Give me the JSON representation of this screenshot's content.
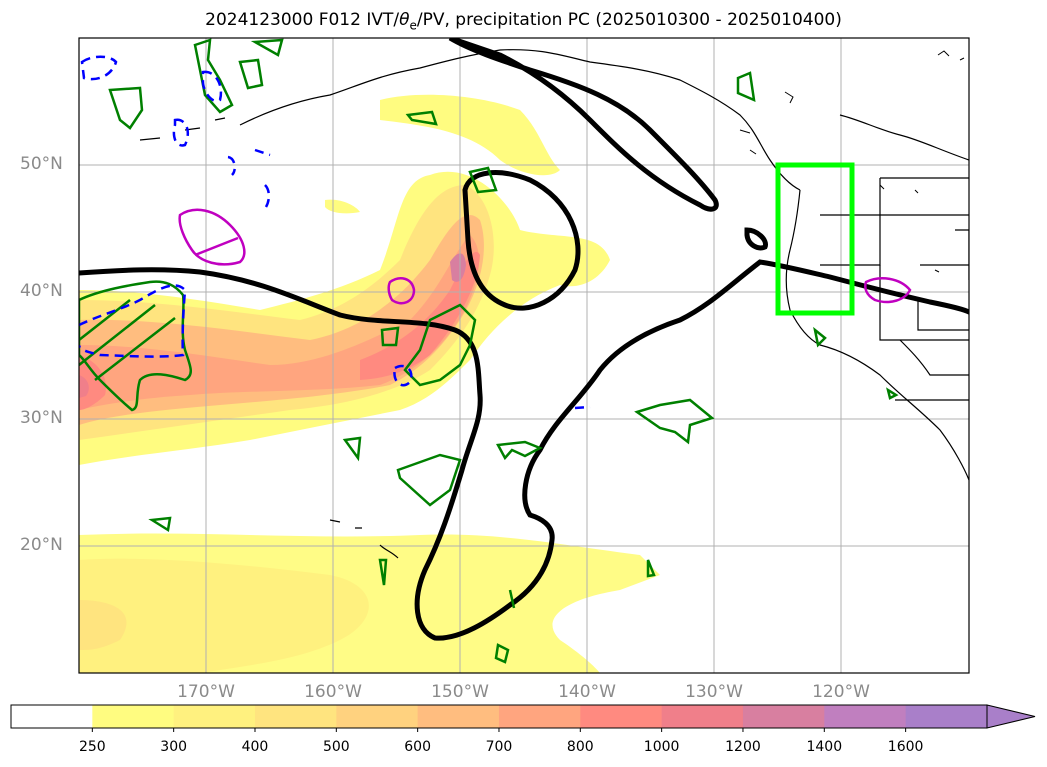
{
  "title": {
    "prefix": "2024123000 F012 IVT/",
    "theta": "θ",
    "theta_sub": "e",
    "suffix": "/PV, precipitation PC (2025010300 - 2025010400)"
  },
  "axes": {
    "lat_labels": [
      "50°N",
      "40°N",
      "30°N",
      "20°N"
    ],
    "lon_labels": [
      "170°W",
      "160°W",
      "150°W",
      "140°W",
      "130°W",
      "120°W"
    ]
  },
  "colorbar": {
    "levels": [
      "250",
      "300",
      "400",
      "500",
      "600",
      "700",
      "800",
      "1000",
      "1200",
      "1400",
      "1600"
    ],
    "colors": [
      "#ffffff",
      "#fffc80",
      "#fff17f",
      "#ffe47f",
      "#ffd27f",
      "#ffbd7f",
      "#ffa57f",
      "#ff8a80",
      "#f07f8a",
      "#d87fa0",
      "#c07fbf",
      "#a97fc9"
    ],
    "extend": "max"
  },
  "map_data": {
    "type": "meteorological map",
    "variables": [
      "IVT shading",
      "theta_e contours",
      "PV contours",
      "precipitation PC box"
    ],
    "region_lat": [
      10,
      60
    ],
    "region_lon": [
      -180,
      -110
    ],
    "highlight_box": {
      "lat": [
        38.5,
        50
      ],
      "lon": [
        -125,
        -119
      ],
      "color": "#00ff00"
    },
    "contour_colors": {
      "black": "#000000",
      "green": "#008000",
      "blue": "#0000ff",
      "magenta": "#c000c0"
    }
  }
}
